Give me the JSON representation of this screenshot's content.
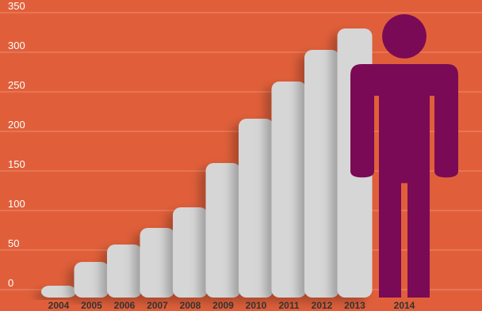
{
  "chart_data": {
    "type": "bar",
    "categories": [
      "2004",
      "2005",
      "2006",
      "2007",
      "2008",
      "2009",
      "2010",
      "2011",
      "2012",
      "2013",
      "2014"
    ],
    "values": [
      5,
      35,
      57,
      78,
      104,
      160,
      216,
      263,
      303,
      330,
      348
    ],
    "yticks": [
      0,
      50,
      100,
      150,
      200,
      250,
      300,
      350
    ],
    "ylim": [
      0,
      350
    ],
    "title": "",
    "xlabel": "",
    "ylabel": "",
    "grid": true,
    "legend": "none",
    "highlight_category": "2014",
    "highlight_icon": "person-icon",
    "colors": {
      "background": "#e05f3a",
      "bar": "#d6d6d6",
      "highlight": "#7a0a55",
      "grid": "#f08a6e",
      "tick_label": "#ffffff",
      "category_label": "#333333"
    }
  }
}
